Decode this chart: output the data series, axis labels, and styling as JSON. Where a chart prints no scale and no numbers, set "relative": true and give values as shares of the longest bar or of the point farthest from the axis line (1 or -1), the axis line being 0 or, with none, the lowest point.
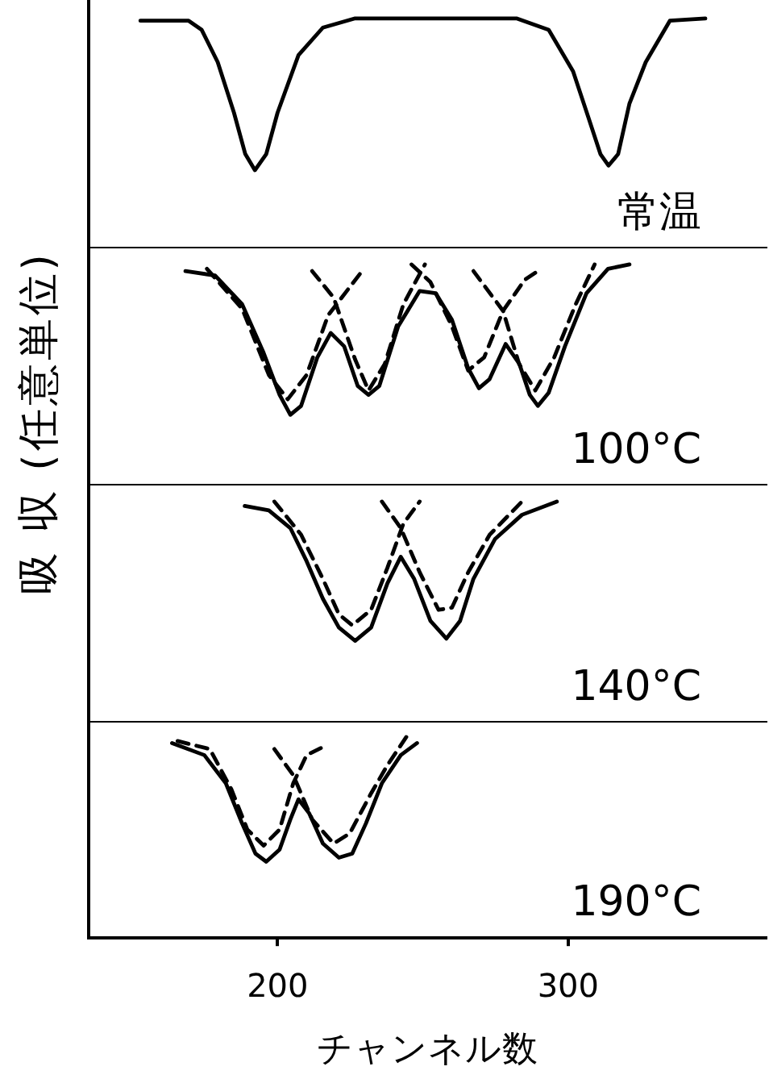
{
  "chart_data": [
    {
      "type": "line",
      "relative": true,
      "xlim": [
        135,
        368
      ],
      "tick_labels": false,
      "marker": "none",
      "annotations": [
        "常温"
      ],
      "series": [
        {
          "color": "#000000",
          "line_style": "solid",
          "x": [
            152.8,
            169.4,
            173.9,
            179.4,
            185,
            188.9,
            192.2,
            196.1,
            200,
            207.2,
            215.6,
            226.7,
            282.2,
            293.3,
            301.7,
            307.2,
            311.1,
            313.9,
            317.2,
            321.1,
            326.7,
            335,
            347.2
          ],
          "values": [
            0.99,
            0.99,
            0.95,
            0.81,
            0.59,
            0.41,
            0.34,
            0.41,
            0.59,
            0.84,
            0.96,
            1,
            1,
            0.95,
            0.77,
            0.56,
            0.41,
            0.36,
            0.41,
            0.63,
            0.81,
            0.99,
            1
          ]
        }
      ]
    },
    {
      "type": "line",
      "relative": true,
      "xlim": [
        135,
        368
      ],
      "tick_labels": false,
      "marker": "none",
      "ylabel": "吸 収 (任意単位)",
      "annotations": [
        "100°C"
      ],
      "series": [
        {
          "color": "#000000",
          "line_style": "solid",
          "x": [
            168.3,
            178.5,
            187.8,
            195.2,
            200.7,
            204.4,
            208.1,
            213.7,
            218.3,
            222.9,
            227.6,
            231.3,
            235,
            241.5,
            248.9,
            254.4,
            260,
            265.6,
            269.3,
            272.9,
            278.5,
            283.2,
            286.8,
            289.6,
            293.3,
            298.9,
            306.3,
            313.7,
            321.1
          ],
          "values": [
            0.97,
            0.95,
            0.82,
            0.6,
            0.41,
            0.32,
            0.36,
            0.58,
            0.69,
            0.63,
            0.45,
            0.41,
            0.45,
            0.72,
            0.88,
            0.87,
            0.75,
            0.53,
            0.44,
            0.48,
            0.64,
            0.55,
            0.41,
            0.36,
            0.42,
            0.63,
            0.87,
            0.98,
            1
          ]
        },
        {
          "color": "#000000",
          "line_style": "dashed",
          "x": [
            175.7,
            187.8,
            197,
            203.5,
            210,
            217.4,
            228.5
          ],
          "values": [
            0.98,
            0.8,
            0.5,
            0.39,
            0.5,
            0.77,
            0.96
          ]
        },
        {
          "color": "#000000",
          "line_style": "dashed",
          "x": [
            211.9,
            219.3,
            226.7,
            231.3,
            236.9,
            243.3,
            250.7
          ],
          "values": [
            0.97,
            0.85,
            0.57,
            0.43,
            0.55,
            0.82,
            1
          ]
        },
        {
          "color": "#000000",
          "line_style": "dashed",
          "x": [
            246.1,
            252.6,
            260,
            265.6,
            271.1,
            277.6,
            285,
            289.6
          ],
          "values": [
            1,
            0.92,
            0.72,
            0.52,
            0.58,
            0.79,
            0.93,
            0.97
          ]
        },
        {
          "color": "#000000",
          "line_style": "dashed",
          "x": [
            267.4,
            277.6,
            283.1,
            288.7,
            295.2,
            302.6,
            309.1
          ],
          "values": [
            0.97,
            0.79,
            0.55,
            0.43,
            0.58,
            0.82,
            1
          ]
        }
      ]
    },
    {
      "type": "line",
      "relative": true,
      "xlim": [
        135,
        368
      ],
      "tick_labels": false,
      "marker": "none",
      "annotations": [
        "140°C"
      ],
      "series": [
        {
          "color": "#000000",
          "line_style": "solid",
          "x": [
            188.7,
            197,
            204.4,
            210,
            215.6,
            221.1,
            226.7,
            232.2,
            237.8,
            242.4,
            247,
            252.6,
            258.1,
            262.8,
            267.4,
            274.8,
            284.1,
            296.1
          ],
          "values": [
            0.98,
            0.96,
            0.88,
            0.73,
            0.56,
            0.43,
            0.37,
            0.43,
            0.63,
            0.75,
            0.65,
            0.46,
            0.38,
            0.46,
            0.65,
            0.83,
            0.94,
            1
          ]
        },
        {
          "color": "#000000",
          "line_style": "dashed",
          "x": [
            198.9,
            208.1,
            215.6,
            221.1,
            225.7,
            232.2,
            237.8,
            243.3,
            248.9
          ],
          "values": [
            1,
            0.85,
            0.65,
            0.49,
            0.44,
            0.51,
            0.7,
            0.9,
            1
          ]
        },
        {
          "color": "#000000",
          "line_style": "dashed",
          "x": [
            235.9,
            242.4,
            248.9,
            255.4,
            260,
            265.6,
            273,
            284.1
          ],
          "values": [
            1,
            0.88,
            0.68,
            0.51,
            0.52,
            0.68,
            0.85,
            1
          ]
        }
      ]
    },
    {
      "type": "line",
      "relative": true,
      "xlim": [
        135,
        368
      ],
      "xticks": [
        200,
        300
      ],
      "tick_labels": "x",
      "marker": "none",
      "xlabel": "チャンネル数",
      "annotations": [
        "190°C"
      ],
      "series": [
        {
          "color": "#000000",
          "line_style": "solid",
          "x": [
            163.7,
            174.8,
            182.2,
            187.8,
            192.4,
            196.1,
            200.7,
            204.4,
            207.2,
            210.9,
            215.6,
            221.1,
            225.7,
            230.4,
            235.9,
            242.4,
            248
          ],
          "values": [
            0.97,
            0.91,
            0.77,
            0.57,
            0.42,
            0.38,
            0.44,
            0.59,
            0.69,
            0.62,
            0.47,
            0.4,
            0.42,
            0.57,
            0.77,
            0.91,
            0.97
          ]
        },
        {
          "color": "#000000",
          "line_style": "dashed",
          "x": [
            165.6,
            176.7,
            184.1,
            189.6,
            195.2,
            200.7,
            205.4,
            210,
            215.6
          ],
          "values": [
            0.98,
            0.94,
            0.74,
            0.54,
            0.46,
            0.54,
            0.77,
            0.91,
            0.95
          ]
        },
        {
          "color": "#000000",
          "line_style": "dashed",
          "x": [
            198.9,
            205.4,
            211.9,
            219.3,
            224.8,
            232.2,
            237.8,
            244.3
          ],
          "values": [
            0.94,
            0.81,
            0.59,
            0.47,
            0.52,
            0.72,
            0.86,
            1
          ]
        }
      ]
    }
  ]
}
